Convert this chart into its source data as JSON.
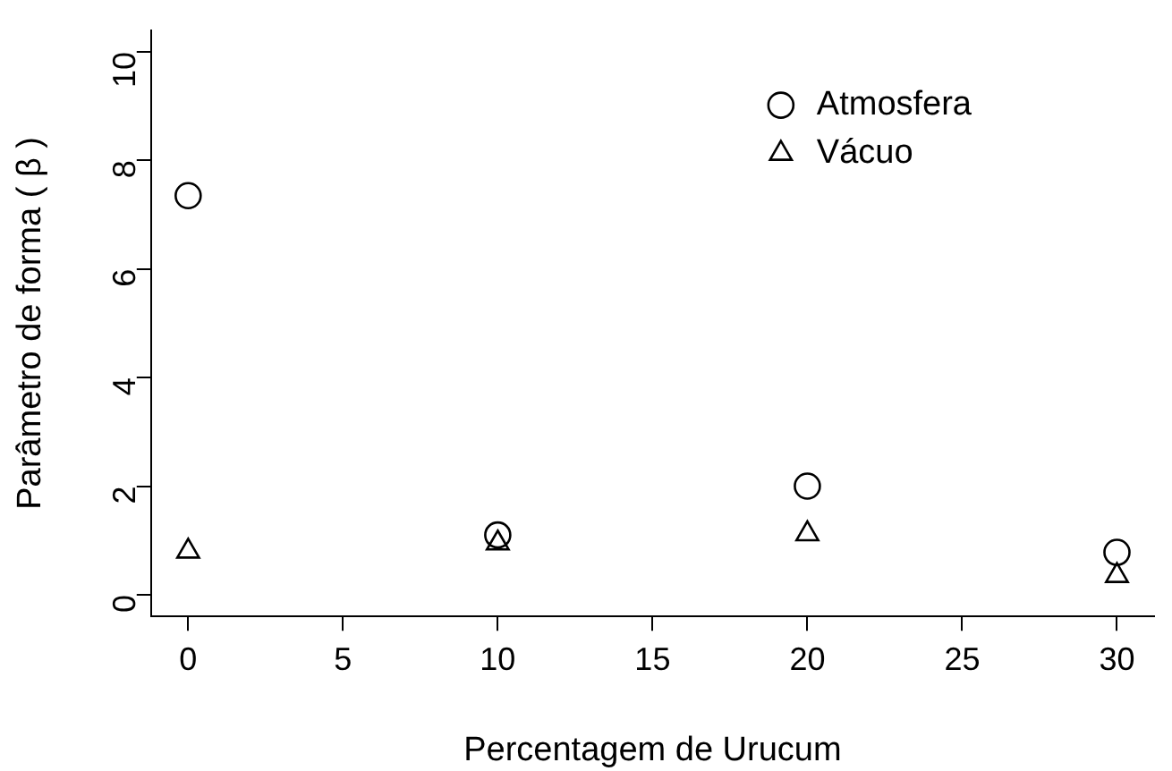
{
  "chart_data": {
    "type": "scatter",
    "xlabel": "Percentagem de Urucum",
    "ylabel": "Parâmetro de forma ( β )",
    "x": [
      0,
      10,
      20,
      30
    ],
    "series": [
      {
        "name": "Atmosfera",
        "color": "#000000",
        "marker": "circle",
        "values": [
          7.35,
          1.1,
          2.0,
          0.78
        ]
      },
      {
        "name": "Vácuo",
        "color": "#000000",
        "marker": "triangle",
        "values": [
          0.8,
          0.95,
          1.12,
          0.35
        ]
      }
    ],
    "xlim": [
      -1.2,
      31.2
    ],
    "xticks": [
      0,
      5,
      10,
      15,
      20,
      25,
      30
    ],
    "ylim": [
      -0.4,
      10.4
    ],
    "yticks": [
      0,
      2,
      4,
      6,
      8,
      10
    ],
    "grid": false,
    "legend": "top right"
  }
}
